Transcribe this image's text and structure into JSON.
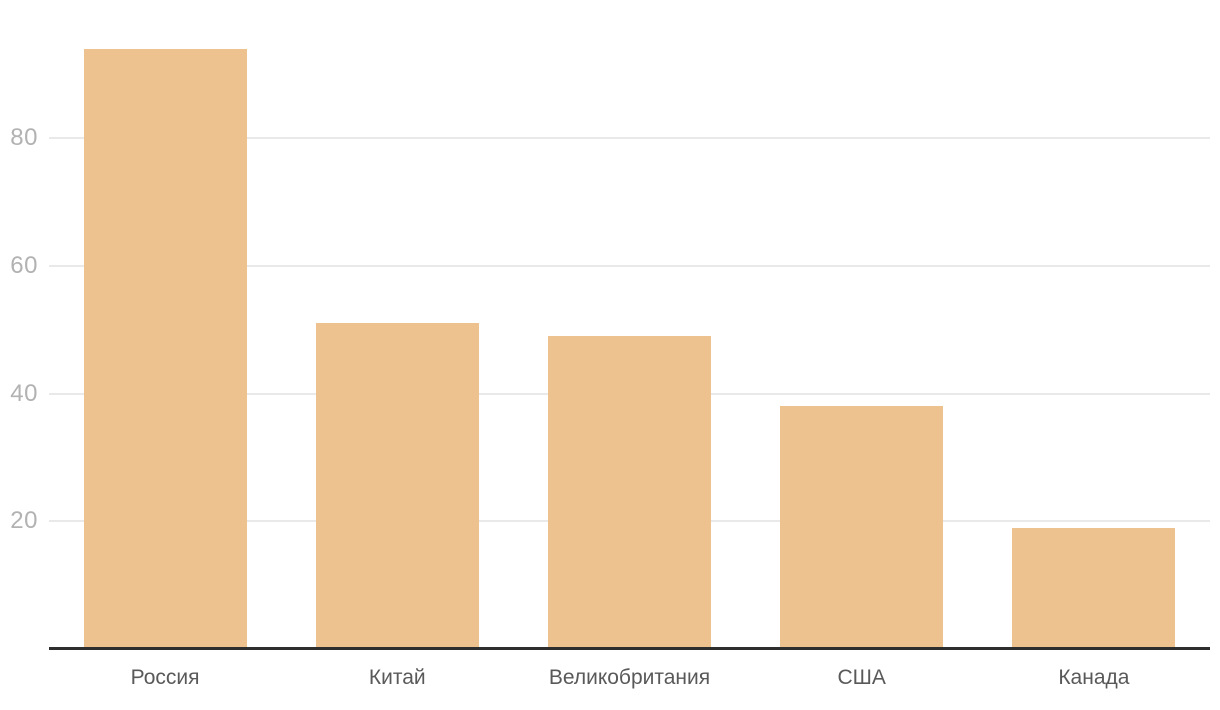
{
  "chart_data": {
    "type": "bar",
    "title": "",
    "xlabel": "",
    "ylabel": "",
    "categories": [
      "Россия",
      "Китай",
      "Великобритания",
      "США",
      "Канада"
    ],
    "values": [
      94,
      51,
      49,
      38,
      19
    ],
    "yticks": [
      20,
      40,
      60,
      80
    ],
    "ylim": [
      0,
      101.6
    ],
    "grid": true,
    "legend": false,
    "bar_color": "#edc28e",
    "gridline_color": "#e9e9e9",
    "axis_line_color": "#2e2e2e",
    "ytick_label_color": "#b2b2b2",
    "xtick_label_color": "#595959"
  }
}
